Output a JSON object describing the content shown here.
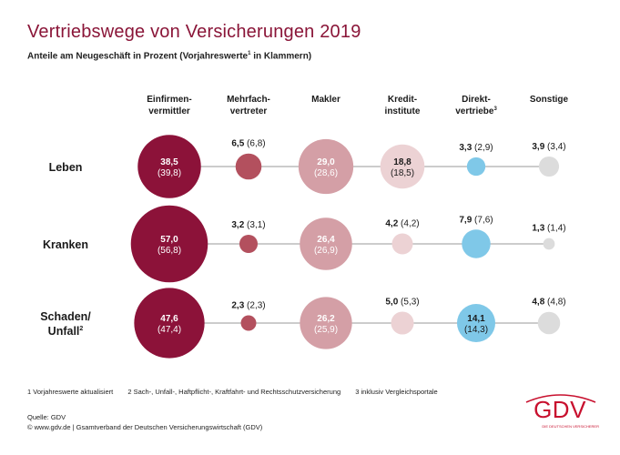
{
  "title": "Vertriebswege von Versicherungen 2019",
  "subtitle": "Anteile am Neugeschäft in Prozent (Vorjahreswerte",
  "subtitle_sup": "1",
  "subtitle_end": " in Klammern)",
  "colors": {
    "title": "#8a1538",
    "einfirmen": "#8c1239",
    "mehrfach": "#b3505e",
    "makler": "#d49fa6",
    "kredit": "#ecd2d4",
    "direkt": "#7fc8e8",
    "sonstige": "#dcdcdc",
    "logo": "#c8102e"
  },
  "footnotes": [
    "1  Vorjahreswerte aktualisiert",
    "2  Sach-, Unfall-, Haftpflicht-, Kraftfahrt- und Rechtsschutzversicherung",
    "3  inklusiv Vergleichsportale"
  ],
  "source": {
    "line1": "Quelle: GDV",
    "line2": "© www.gdv.de | Gsamtverband der Deutschen Versicherungswirtschaft (GDV)"
  },
  "logo": {
    "text": "GDV",
    "claim": "DIE DEUTSCHEN VERSICHERER"
  },
  "chart_data": {
    "type": "bubble-matrix",
    "columns": [
      {
        "key": "einfirmen",
        "lines": [
          "Einfirmen-",
          "vermittler"
        ],
        "sup": ""
      },
      {
        "key": "mehrfach",
        "lines": [
          "Mehrfach-",
          "vertreter"
        ],
        "sup": ""
      },
      {
        "key": "makler",
        "lines": [
          "Makler"
        ],
        "sup": ""
      },
      {
        "key": "kredit",
        "lines": [
          "Kredit-",
          "institute"
        ],
        "sup": ""
      },
      {
        "key": "direkt",
        "lines": [
          "Direkt-",
          "vertriebe"
        ],
        "sup": "3"
      },
      {
        "key": "sonstige",
        "lines": [
          "Sonstige"
        ],
        "sup": ""
      }
    ],
    "rows": [
      {
        "lines": [
          "Leben"
        ],
        "sup": "",
        "values": [
          38.5,
          6.5,
          29.0,
          18.8,
          3.3,
          3.9
        ],
        "labels": [
          "38,5",
          "6,5",
          "29,0",
          "18,8",
          "3,3",
          "3,9"
        ],
        "prior": [
          "(39,8)",
          "(6,8)",
          "(28,6)",
          "(18,5)",
          "(2,9)",
          "(3,4)"
        ]
      },
      {
        "lines": [
          "Kranken"
        ],
        "sup": "",
        "values": [
          57.0,
          3.2,
          26.4,
          4.2,
          7.9,
          1.3
        ],
        "labels": [
          "57,0",
          "3,2",
          "26,4",
          "4,2",
          "7,9",
          "1,3"
        ],
        "prior": [
          "(56,8)",
          "(3,1)",
          "(26,9)",
          "(4,2)",
          "(7,6)",
          "(1,4)"
        ]
      },
      {
        "lines": [
          "Schaden/",
          "Unfall"
        ],
        "sup": "2",
        "values": [
          47.6,
          2.3,
          26.2,
          5.0,
          14.1,
          4.8
        ],
        "labels": [
          "47,6",
          "2,3",
          "26,2",
          "5,0",
          "14,1",
          "4,8"
        ],
        "prior": [
          "(47,4)",
          "(2,3)",
          "(25,9)",
          "(5,3)",
          "(14,3)",
          "(4,8)"
        ]
      }
    ]
  }
}
